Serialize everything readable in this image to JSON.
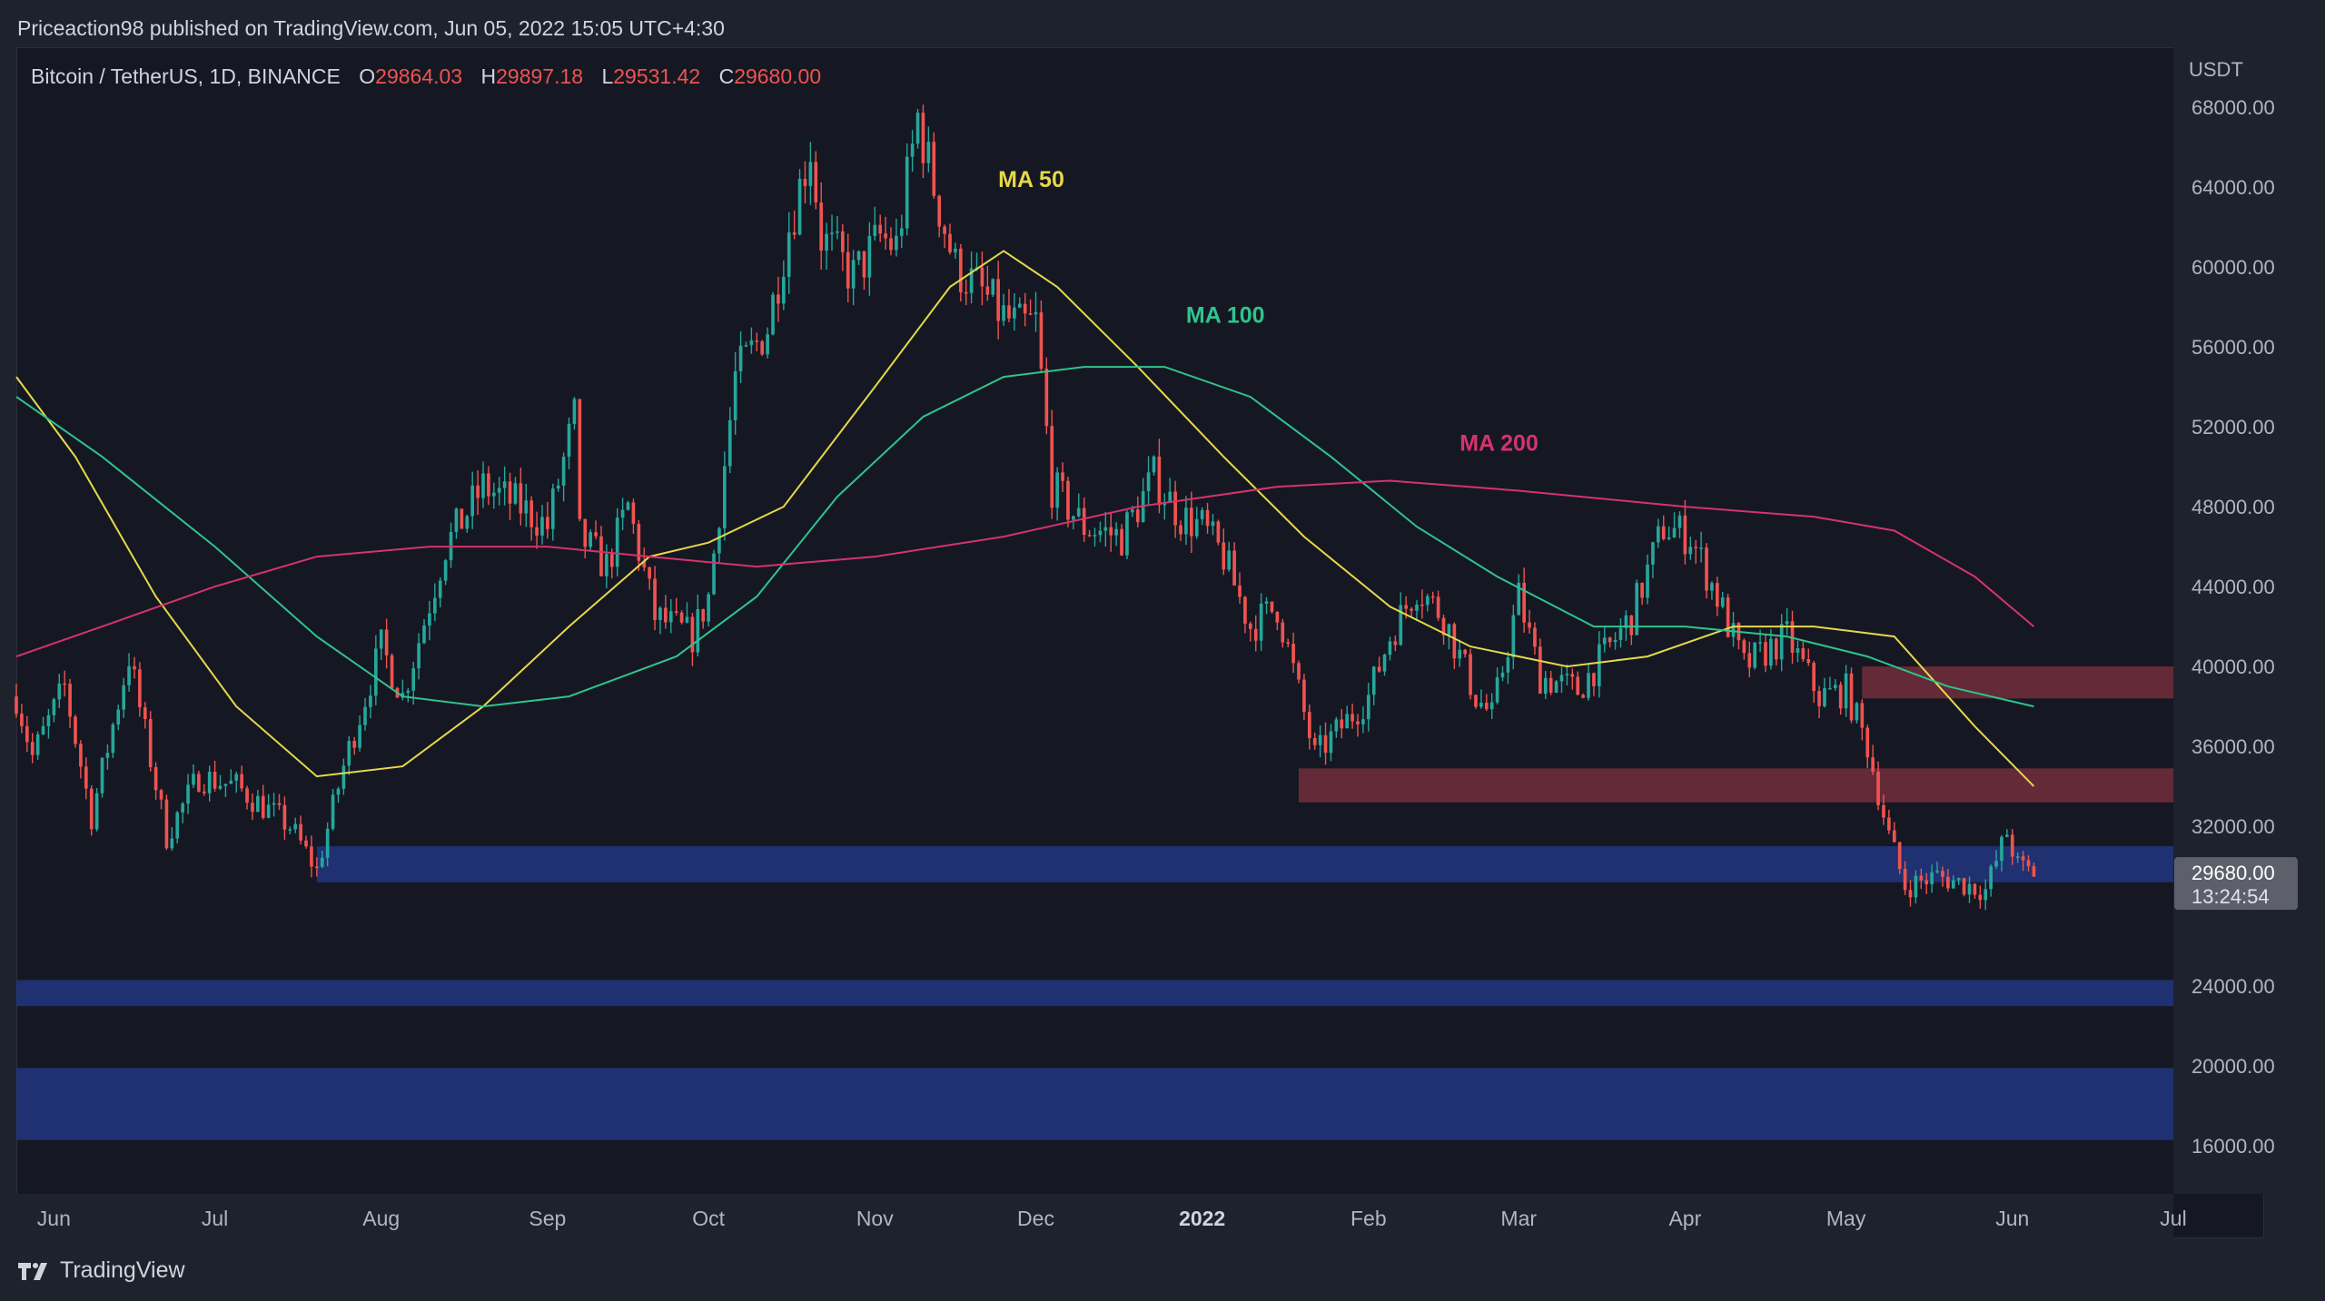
{
  "header": {
    "publish_line": "Priceaction98 published on TradingView.com, Jun 05, 2022 15:05 UTC+4:30"
  },
  "symbol": {
    "name": "Bitcoin / TetherUS, 1D, BINANCE",
    "open_label": "O",
    "open": "29864.03",
    "high_label": "H",
    "high": "29897.18",
    "low_label": "L",
    "low": "29531.42",
    "close_label": "C",
    "close": "29680.00"
  },
  "price_badge": {
    "price": "29680.00",
    "countdown": "13:24:54"
  },
  "footer": {
    "brand": "TradingView"
  },
  "colors": {
    "background": "#151823",
    "candle_up": "#26a69a",
    "candle_down": "#ef5350",
    "ma50": "#e6d84a",
    "ma100": "#2fc48d",
    "ma200": "#d6336c",
    "resistance_zone": "#6b2c3a",
    "support_zone": "#22347a"
  },
  "chart_data": {
    "type": "candlestick",
    "title": "",
    "currency": "USDT",
    "y_ticks": [
      68000,
      64000,
      60000,
      56000,
      52000,
      48000,
      44000,
      40000,
      36000,
      32000,
      24000,
      20000,
      16000
    ],
    "ylim": [
      13600,
      71000
    ],
    "x_ticks": [
      {
        "label": "Jun",
        "date": "2021-06-01"
      },
      {
        "label": "Jul",
        "date": "2021-07-01"
      },
      {
        "label": "Aug",
        "date": "2021-08-01"
      },
      {
        "label": "Sep",
        "date": "2021-09-01"
      },
      {
        "label": "Oct",
        "date": "2021-10-01"
      },
      {
        "label": "Nov",
        "date": "2021-11-01"
      },
      {
        "label": "Dec",
        "date": "2021-12-01"
      },
      {
        "label": "2022",
        "date": "2022-01-01",
        "bold": true
      },
      {
        "label": "Feb",
        "date": "2022-02-01"
      },
      {
        "label": "Mar",
        "date": "2022-03-01"
      },
      {
        "label": "Apr",
        "date": "2022-04-01"
      },
      {
        "label": "May",
        "date": "2022-05-01"
      },
      {
        "label": "Jun",
        "date": "2022-06-01"
      },
      {
        "label": "Jul",
        "date": "2022-07-01"
      }
    ],
    "xlim": [
      "2021-05-25",
      "2022-07-01"
    ],
    "price_path": [
      [
        "2021-05-25",
        38500
      ],
      [
        "2021-05-28",
        35500
      ],
      [
        "2021-06-03",
        39000
      ],
      [
        "2021-06-08",
        32500
      ],
      [
        "2021-06-15",
        40500
      ],
      [
        "2021-06-22",
        31500
      ],
      [
        "2021-06-28",
        34500
      ],
      [
        "2021-07-05",
        34000
      ],
      [
        "2021-07-15",
        32000
      ],
      [
        "2021-07-20",
        29800
      ],
      [
        "2021-07-25",
        35000
      ],
      [
        "2021-08-01",
        41000
      ],
      [
        "2021-08-05",
        38500
      ],
      [
        "2021-08-13",
        46000
      ],
      [
        "2021-08-20",
        49000
      ],
      [
        "2021-08-27",
        48000
      ],
      [
        "2021-09-01",
        47000
      ],
      [
        "2021-09-06",
        52500
      ],
      [
        "2021-09-07",
        46500
      ],
      [
        "2021-09-12",
        45000
      ],
      [
        "2021-09-16",
        48000
      ],
      [
        "2021-09-21",
        42500
      ],
      [
        "2021-09-28",
        41500
      ],
      [
        "2021-10-01",
        43500
      ],
      [
        "2021-10-06",
        54500
      ],
      [
        "2021-10-12",
        57000
      ],
      [
        "2021-10-16",
        62000
      ],
      [
        "2021-10-20",
        66000
      ],
      [
        "2021-10-22",
        61500
      ],
      [
        "2021-10-28",
        59500
      ],
      [
        "2021-11-02",
        61500
      ],
      [
        "2021-11-05",
        61000
      ],
      [
        "2021-11-09",
        67500
      ],
      [
        "2021-11-12",
        64000
      ],
      [
        "2021-11-16",
        60000
      ],
      [
        "2021-11-20",
        59000
      ],
      [
        "2021-11-25",
        57500
      ],
      [
        "2021-11-28",
        57000
      ],
      [
        "2021-12-01",
        57200
      ],
      [
        "2021-12-04",
        49000
      ],
      [
        "2021-12-10",
        47000
      ],
      [
        "2021-12-17",
        46500
      ],
      [
        "2021-12-23",
        49500
      ],
      [
        "2021-12-28",
        47500
      ],
      [
        "2022-01-01",
        47000
      ],
      [
        "2022-01-05",
        45500
      ],
      [
        "2022-01-10",
        42000
      ],
      [
        "2022-01-15",
        43000
      ],
      [
        "2022-01-22",
        35500
      ],
      [
        "2022-01-27",
        37000
      ],
      [
        "2022-02-01",
        38500
      ],
      [
        "2022-02-05",
        41500
      ],
      [
        "2022-02-10",
        44000
      ],
      [
        "2022-02-15",
        42500
      ],
      [
        "2022-02-21",
        38500
      ],
      [
        "2022-02-24",
        37500
      ],
      [
        "2022-03-01",
        43500
      ],
      [
        "2022-03-05",
        39500
      ],
      [
        "2022-03-12",
        38800
      ],
      [
        "2022-03-18",
        41000
      ],
      [
        "2022-03-22",
        42500
      ],
      [
        "2022-03-28",
        47000
      ],
      [
        "2022-04-02",
        46500
      ],
      [
        "2022-04-07",
        43500
      ],
      [
        "2022-04-12",
        40000
      ],
      [
        "2022-04-20",
        41500
      ],
      [
        "2022-04-26",
        38500
      ],
      [
        "2022-05-01",
        38800
      ],
      [
        "2022-05-05",
        36000
      ],
      [
        "2022-05-09",
        31500
      ],
      [
        "2022-05-12",
        29000
      ],
      [
        "2022-05-18",
        29500
      ],
      [
        "2022-05-27",
        28800
      ],
      [
        "2022-05-31",
        31700
      ],
      [
        "2022-06-02",
        30000
      ],
      [
        "2022-06-05",
        29680
      ]
    ],
    "moving_averages": [
      {
        "name": "MA 50",
        "color": "#e6d84a",
        "points": [
          [
            "2021-05-25",
            54500
          ],
          [
            "2021-06-05",
            50500
          ],
          [
            "2021-06-20",
            43500
          ],
          [
            "2021-07-05",
            38000
          ],
          [
            "2021-07-20",
            34500
          ],
          [
            "2021-08-05",
            35000
          ],
          [
            "2021-08-20",
            38000
          ],
          [
            "2021-09-05",
            42000
          ],
          [
            "2021-09-20",
            45500
          ],
          [
            "2021-10-01",
            46200
          ],
          [
            "2021-10-15",
            48000
          ],
          [
            "2021-11-01",
            54000
          ],
          [
            "2021-11-15",
            59000
          ],
          [
            "2021-11-25",
            60800
          ],
          [
            "2021-12-05",
            59000
          ],
          [
            "2021-12-20",
            55000
          ],
          [
            "2022-01-05",
            50500
          ],
          [
            "2022-01-20",
            46500
          ],
          [
            "2022-02-05",
            43000
          ],
          [
            "2022-02-20",
            41000
          ],
          [
            "2022-03-10",
            40000
          ],
          [
            "2022-03-25",
            40500
          ],
          [
            "2022-04-10",
            42000
          ],
          [
            "2022-04-25",
            42000
          ],
          [
            "2022-05-10",
            41500
          ],
          [
            "2022-05-25",
            37000
          ],
          [
            "2022-06-05",
            34000
          ]
        ]
      },
      {
        "name": "MA 100",
        "color": "#2fc48d",
        "points": [
          [
            "2021-05-25",
            53500
          ],
          [
            "2021-06-10",
            50500
          ],
          [
            "2021-07-01",
            46000
          ],
          [
            "2021-07-20",
            41500
          ],
          [
            "2021-08-05",
            38500
          ],
          [
            "2021-08-20",
            38000
          ],
          [
            "2021-09-05",
            38500
          ],
          [
            "2021-09-25",
            40500
          ],
          [
            "2021-10-10",
            43500
          ],
          [
            "2021-10-25",
            48500
          ],
          [
            "2021-11-10",
            52500
          ],
          [
            "2021-11-25",
            54500
          ],
          [
            "2021-12-10",
            55000
          ],
          [
            "2021-12-25",
            55000
          ],
          [
            "2022-01-10",
            53500
          ],
          [
            "2022-01-25",
            50500
          ],
          [
            "2022-02-10",
            47000
          ],
          [
            "2022-02-25",
            44500
          ],
          [
            "2022-03-15",
            42000
          ],
          [
            "2022-04-01",
            42000
          ],
          [
            "2022-04-20",
            41500
          ],
          [
            "2022-05-05",
            40500
          ],
          [
            "2022-05-20",
            39000
          ],
          [
            "2022-06-05",
            38000
          ]
        ]
      },
      {
        "name": "MA 200",
        "color": "#d6336c",
        "points": [
          [
            "2021-05-25",
            40500
          ],
          [
            "2021-06-10",
            42000
          ],
          [
            "2021-07-01",
            44000
          ],
          [
            "2021-07-20",
            45500
          ],
          [
            "2021-08-10",
            46000
          ],
          [
            "2021-09-01",
            46000
          ],
          [
            "2021-09-20",
            45500
          ],
          [
            "2021-10-10",
            45000
          ],
          [
            "2021-11-01",
            45500
          ],
          [
            "2021-11-25",
            46500
          ],
          [
            "2021-12-20",
            48000
          ],
          [
            "2022-01-15",
            49000
          ],
          [
            "2022-02-05",
            49300
          ],
          [
            "2022-03-01",
            48800
          ],
          [
            "2022-04-01",
            48000
          ],
          [
            "2022-04-25",
            47500
          ],
          [
            "2022-05-10",
            46800
          ],
          [
            "2022-05-25",
            44500
          ],
          [
            "2022-06-05",
            42000
          ]
        ]
      }
    ],
    "zones": [
      {
        "kind": "resistance",
        "from": "2022-05-04",
        "to": "2022-07-01",
        "low": 38400,
        "high": 40000
      },
      {
        "kind": "resistance",
        "from": "2022-01-19",
        "to": "2022-07-01",
        "low": 33200,
        "high": 34900
      },
      {
        "kind": "support",
        "from": "2021-07-20",
        "to": "2022-07-01",
        "low": 29200,
        "high": 31000
      },
      {
        "kind": "support",
        "from": "2021-05-25",
        "to": "2022-07-01",
        "low": 23000,
        "high": 24300
      },
      {
        "kind": "support",
        "from": "2021-05-25",
        "to": "2022-07-01",
        "low": 16300,
        "high": 19900
      }
    ],
    "annotations": [
      {
        "text": "MA 50",
        "date": "2021-11-24",
        "price": 64000,
        "color": "#e6d84a"
      },
      {
        "text": "MA 100",
        "date": "2021-12-29",
        "price": 57200,
        "color": "#2fc48d"
      },
      {
        "text": "MA 200",
        "date": "2022-02-18",
        "price": 50800,
        "color": "#d6336c"
      }
    ],
    "last_price": 29680.0
  }
}
